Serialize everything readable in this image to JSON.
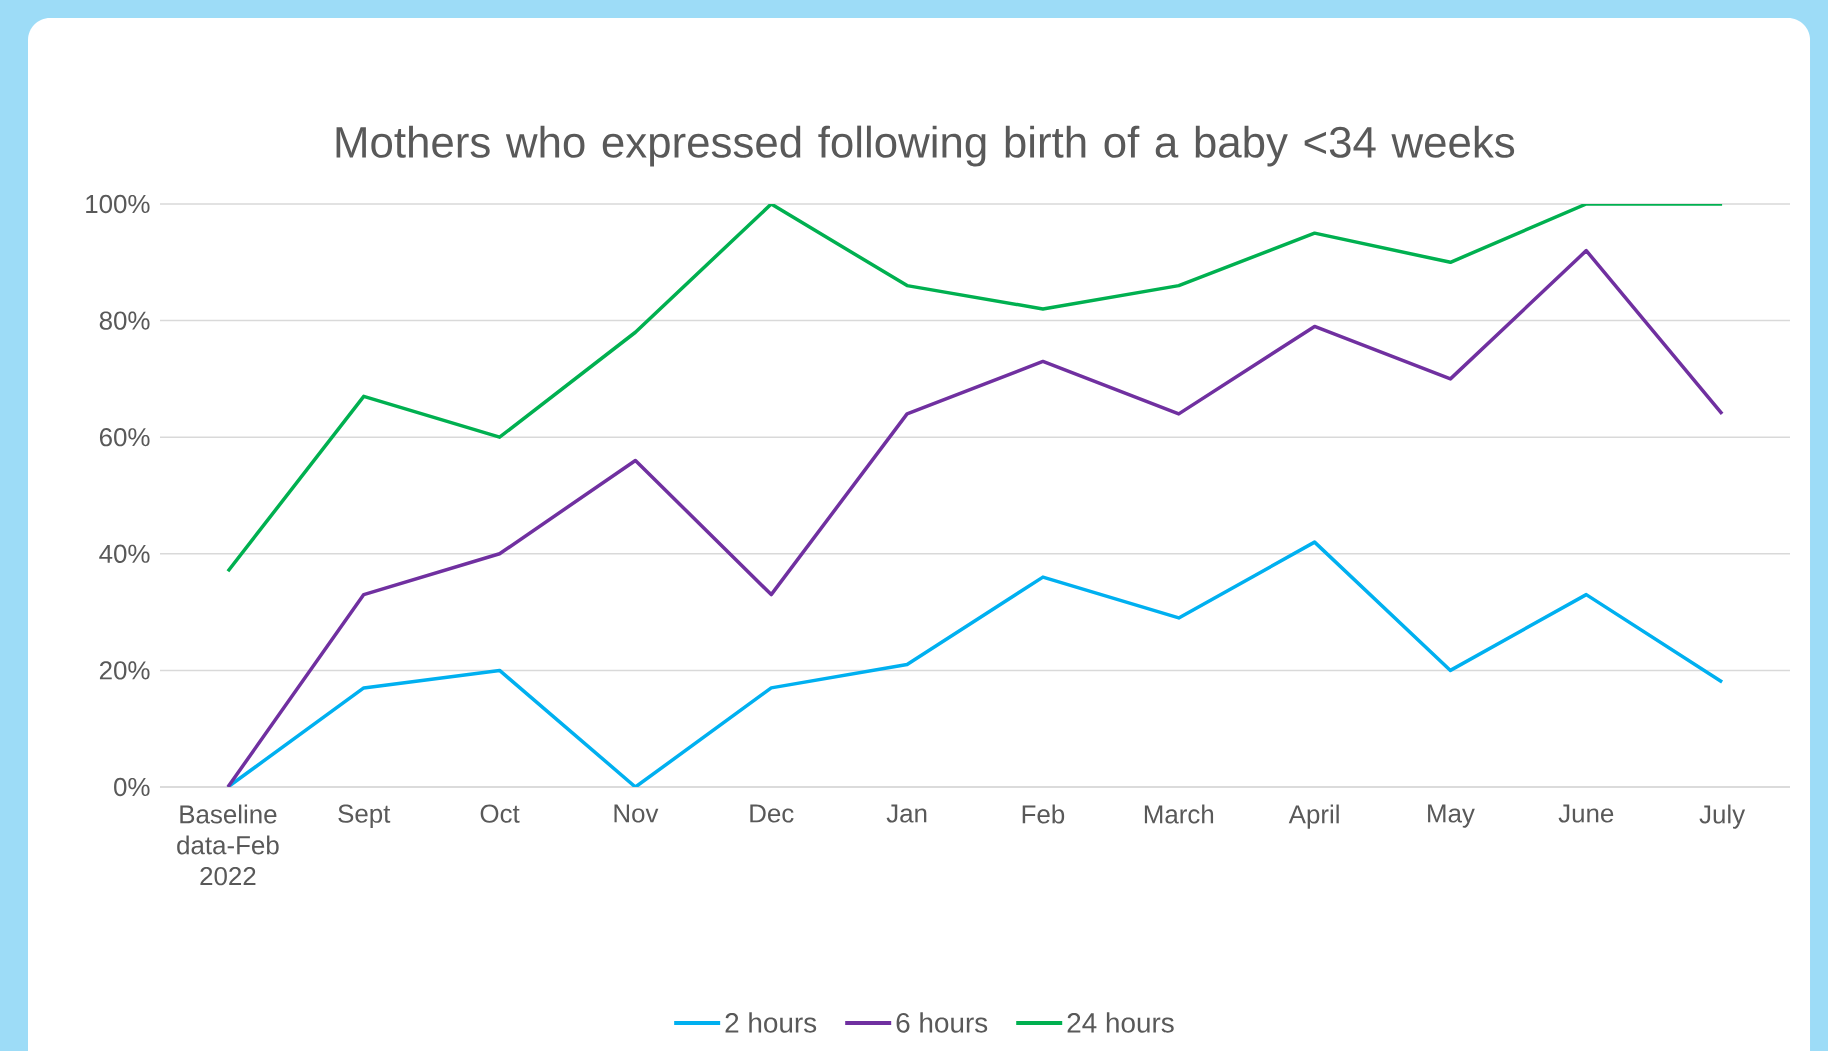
{
  "chart_data": {
    "type": "line",
    "title": "Mothers who expressed following birth of a baby <34 weeks",
    "categories": [
      "Baseline data-Feb 2022",
      "Sept",
      "Oct",
      "Nov",
      "Dec",
      "Jan",
      "Feb",
      "March",
      "April",
      "May",
      "June",
      "July"
    ],
    "series": [
      {
        "name": "2 hours",
        "color": "#00b0f0",
        "values": [
          0,
          17,
          20,
          0,
          17,
          21,
          36,
          29,
          42,
          20,
          33,
          18
        ]
      },
      {
        "name": "6 hours",
        "color": "#7030a0",
        "values": [
          0,
          33,
          40,
          56,
          33,
          64,
          73,
          64,
          79,
          70,
          92,
          64
        ]
      },
      {
        "name": "24 hours",
        "color": "#00b050",
        "values": [
          37,
          67,
          60,
          78,
          100,
          86,
          82,
          86,
          95,
          90,
          100,
          100
        ]
      }
    ],
    "ylim": [
      0,
      100
    ],
    "yticks": [
      {
        "value": 0,
        "label": "0%"
      },
      {
        "value": 20,
        "label": "20%"
      },
      {
        "value": 40,
        "label": "40%"
      },
      {
        "value": 60,
        "label": "60%"
      },
      {
        "value": 80,
        "label": "80%"
      },
      {
        "value": 100,
        "label": "100%"
      }
    ],
    "grid": "y",
    "legend": "bottom",
    "marker": "none",
    "line_style": "solid"
  }
}
